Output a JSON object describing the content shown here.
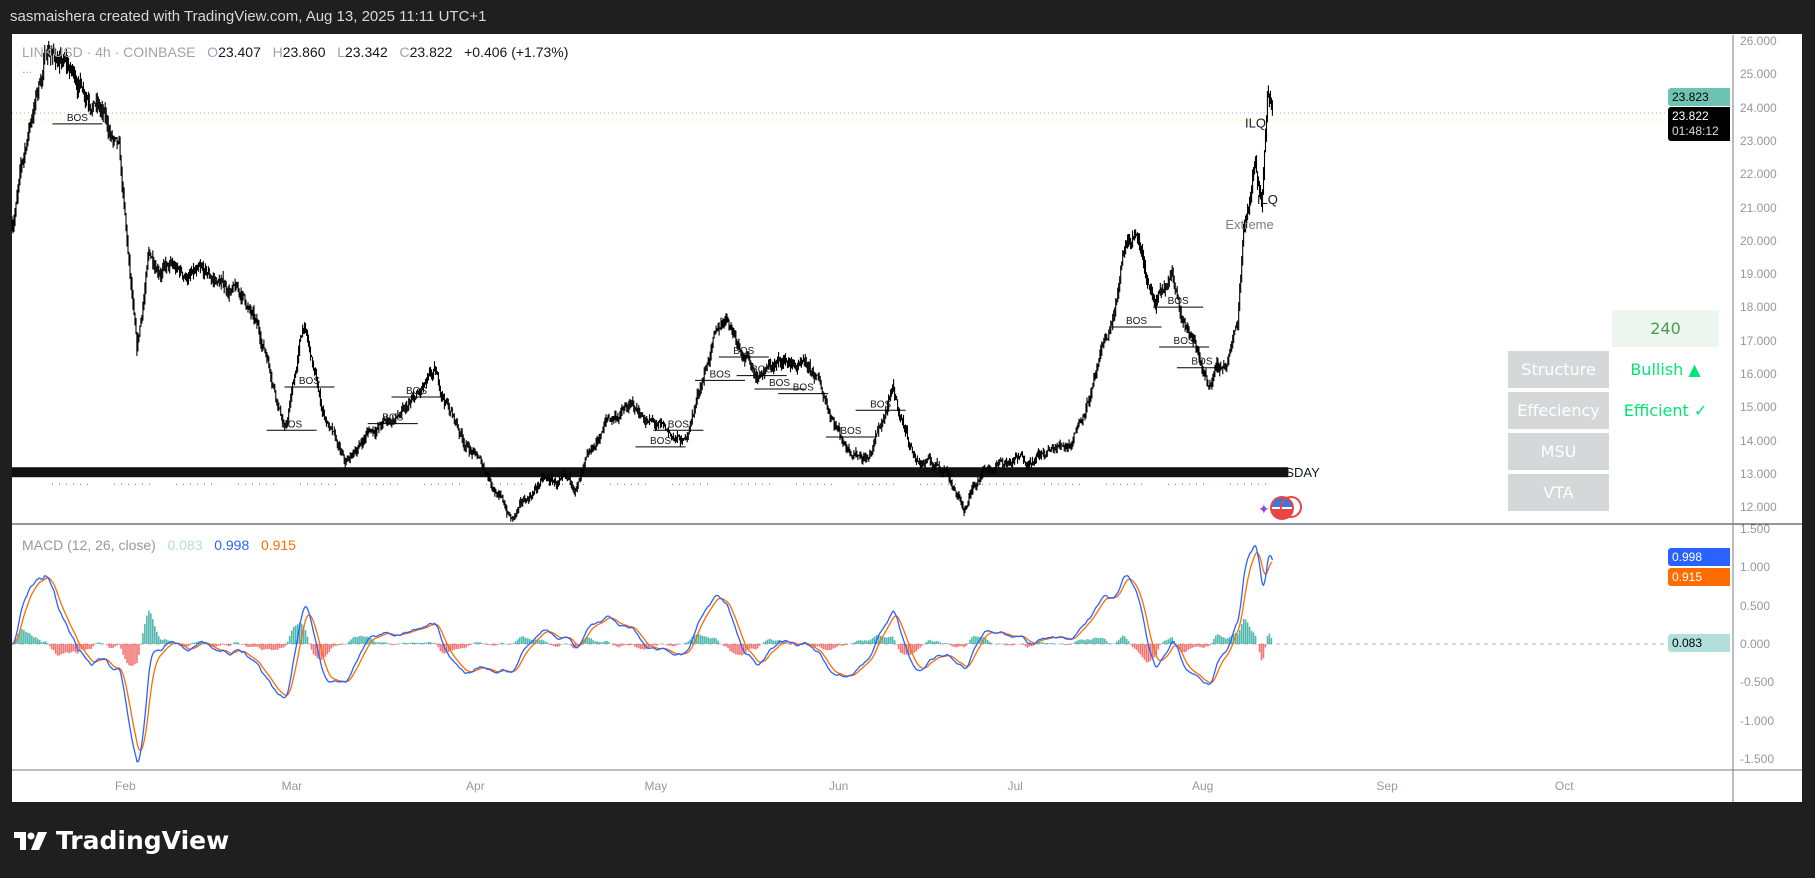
{
  "header": {
    "attribution": "sasmaishera created with TradingView.com, Aug 13, 2025 11:11 UTC+1"
  },
  "legend": {
    "symbol": "LINKUSD · 4h · COINBASE",
    "o_label": "O",
    "open": "23.407",
    "h_label": "H",
    "high": "23.860",
    "l_label": "L",
    "low": "23.342",
    "c_label": "C",
    "close": "23.822",
    "change": "+0.406 (+1.73%)",
    "more": "..."
  },
  "price_axis": {
    "ticks": [
      "26.000",
      "25.000",
      "24.000",
      "23.000",
      "22.000",
      "21.000",
      "20.000",
      "19.000",
      "18.000",
      "17.000",
      "16.000",
      "15.000",
      "14.000",
      "13.000",
      "12.000"
    ],
    "bid_tag": "23.823",
    "last_tag": "23.822",
    "countdown": "01:48:12"
  },
  "time_axis": {
    "ticks": [
      "Feb",
      "Mar",
      "Apr",
      "May",
      "Jun",
      "Jul",
      "Aug",
      "Sep",
      "Oct"
    ]
  },
  "chart_data": {
    "type": "candlestick",
    "symbol": "LINKUSD",
    "interval": "4h",
    "ylim": [
      11.8,
      26.2
    ],
    "price_path": [
      [
        "2025-01-13",
        20.5
      ],
      [
        "2025-01-16",
        23.5
      ],
      [
        "2025-01-19",
        25.8
      ],
      [
        "2025-01-23",
        25.0
      ],
      [
        "2025-01-27",
        24.3
      ],
      [
        "2025-01-31",
        22.5
      ],
      [
        "2025-02-03",
        16.5
      ],
      [
        "2025-02-05",
        19.5
      ],
      [
        "2025-02-10",
        19.0
      ],
      [
        "2025-02-16",
        18.8
      ],
      [
        "2025-02-21",
        18.3
      ],
      [
        "2025-02-25",
        16.5
      ],
      [
        "2025-02-28",
        14.3
      ],
      [
        "2025-03-03",
        17.5
      ],
      [
        "2025-03-06",
        15.0
      ],
      [
        "2025-03-10",
        13.2
      ],
      [
        "2025-03-14",
        14.3
      ],
      [
        "2025-03-20",
        14.8
      ],
      [
        "2025-03-25",
        15.9
      ],
      [
        "2025-03-30",
        14.0
      ],
      [
        "2025-04-03",
        13.0
      ],
      [
        "2025-04-07",
        11.6
      ],
      [
        "2025-04-12",
        12.8
      ],
      [
        "2025-04-18",
        12.6
      ],
      [
        "2025-04-23",
        14.6
      ],
      [
        "2025-04-27",
        15.0
      ],
      [
        "2025-05-03",
        14.2
      ],
      [
        "2025-05-06",
        13.9
      ],
      [
        "2025-05-10",
        16.5
      ],
      [
        "2025-05-13",
        17.8
      ],
      [
        "2025-05-18",
        16.0
      ],
      [
        "2025-05-23",
        16.4
      ],
      [
        "2025-05-28",
        15.9
      ],
      [
        "2025-06-02",
        13.9
      ],
      [
        "2025-06-06",
        13.5
      ],
      [
        "2025-06-10",
        15.4
      ],
      [
        "2025-06-14",
        13.4
      ],
      [
        "2025-06-19",
        13.2
      ],
      [
        "2025-06-22",
        11.9
      ],
      [
        "2025-06-25",
        13.2
      ],
      [
        "2025-07-01",
        13.4
      ],
      [
        "2025-07-06",
        13.6
      ],
      [
        "2025-07-10",
        14.0
      ],
      [
        "2025-07-14",
        15.8
      ],
      [
        "2025-07-17",
        17.6
      ],
      [
        "2025-07-19",
        19.6
      ],
      [
        "2025-07-21",
        20.2
      ],
      [
        "2025-07-24",
        18.0
      ],
      [
        "2025-07-27",
        18.8
      ],
      [
        "2025-07-30",
        17.2
      ],
      [
        "2025-08-02",
        15.8
      ],
      [
        "2025-08-05",
        16.3
      ],
      [
        "2025-08-07",
        17.5
      ],
      [
        "2025-08-08",
        20.5
      ],
      [
        "2025-08-10",
        22.4
      ],
      [
        "2025-08-11",
        21.2
      ],
      [
        "2025-08-12",
        24.4
      ],
      [
        "2025-08-13",
        23.822
      ]
    ],
    "annotations": [
      {
        "text": "BOS",
        "date": "2025-01-24",
        "price": 23.6
      },
      {
        "text": "BOS",
        "date": "2025-03-01",
        "price": 14.4
      },
      {
        "text": "BOS",
        "date": "2025-03-04",
        "price": 15.7
      },
      {
        "text": "BOS",
        "date": "2025-03-18",
        "price": 14.6
      },
      {
        "text": "BOS",
        "date": "2025-03-22",
        "price": 15.4
      },
      {
        "text": "BOS",
        "date": "2025-05-02",
        "price": 13.9
      },
      {
        "text": "BOS",
        "date": "2025-05-05",
        "price": 14.4
      },
      {
        "text": "BOS",
        "date": "2025-05-12",
        "price": 15.9
      },
      {
        "text": "BOS",
        "date": "2025-05-16",
        "price": 16.6
      },
      {
        "text": "BOS",
        "date": "2025-05-19",
        "price": 16.4
      },
      {
        "text": "BOS",
        "date": "2025-05-22",
        "price": 16.0
      },
      {
        "text": "BOS",
        "date": "2025-05-26",
        "price": 15.5
      },
      {
        "text": "BOS",
        "date": "2025-06-03",
        "price": 14.2
      },
      {
        "text": "BOS",
        "date": "2025-06-08",
        "price": 15.0
      },
      {
        "text": "BOS",
        "date": "2025-07-21",
        "price": 17.5
      },
      {
        "text": "BOS",
        "date": "2025-07-28",
        "price": 18.1
      },
      {
        "text": "BOS",
        "date": "2025-07-29",
        "price": 16.9
      },
      {
        "text": "BOS",
        "date": "2025-08-01",
        "price": 17.0
      },
      {
        "text": "ILQ",
        "date": "2025-08-10",
        "price": 23.4
      },
      {
        "text": "ILQ",
        "date": "2025-08-12",
        "price": 21.1
      },
      {
        "text": "Extreme",
        "date": "2025-08-09",
        "price": 20.8
      }
    ],
    "band_label": "SDAY",
    "band_price": 13.05
  },
  "macd": {
    "title": "MACD (12, 26, close)",
    "histogram": "0.083",
    "macd": "0.998",
    "signal": "0.915",
    "ticks": [
      "1.500",
      "1.000",
      "0.500",
      "0.000",
      "-0.500",
      "-1.000",
      "-1.500"
    ],
    "ylim": [
      -1.6,
      1.6
    ],
    "colors": {
      "macd": "#2962ff",
      "signal": "#ff6d00",
      "hist_up": "#26a69a",
      "hist_down": "#ef5350"
    }
  },
  "table": {
    "timeframe": "240",
    "rows": [
      {
        "label": "Structure",
        "value": "Bullish ▲"
      },
      {
        "label": "Effeciency",
        "value": "Efficient ✓"
      },
      {
        "label": "MSU",
        "value": ""
      },
      {
        "label": "VTA",
        "value": ""
      }
    ],
    "value_color": "#00e676"
  },
  "branding": {
    "logo_text": "TradingView"
  }
}
